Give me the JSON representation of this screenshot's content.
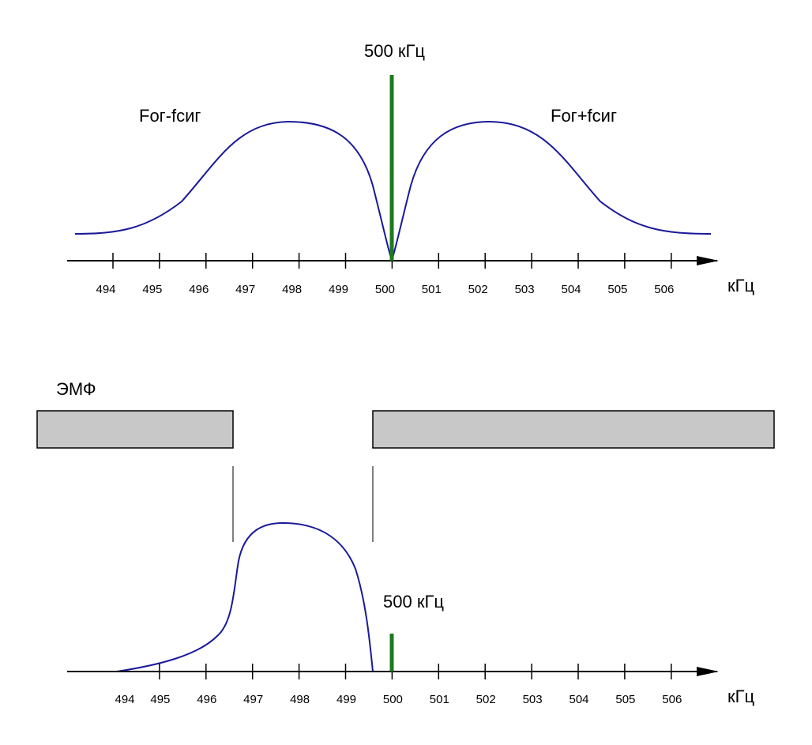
{
  "top": {
    "carrier_label": "500 кГц",
    "left_sideband_label": "Fог-fсиг",
    "right_sideband_label": "Fог+fсиг",
    "axis_unit": "кГц",
    "tick_labels": [
      "494",
      "495",
      "496",
      "497",
      "498",
      "499",
      "500",
      "501",
      "502",
      "503",
      "504",
      "505",
      "506"
    ]
  },
  "bottom": {
    "filter_label": "ЭМФ",
    "carrier_label": "500 кГц",
    "axis_unit": "кГц",
    "tick_labels": [
      "494",
      "495",
      "496",
      "497",
      "498",
      "499",
      "500",
      "501",
      "502",
      "503",
      "504",
      "505",
      "506"
    ]
  },
  "colors": {
    "curve": "#1a1a99",
    "carrier": "#1e7a1e",
    "filter_fill": "#c8c8c8",
    "axis": "#000000"
  }
}
